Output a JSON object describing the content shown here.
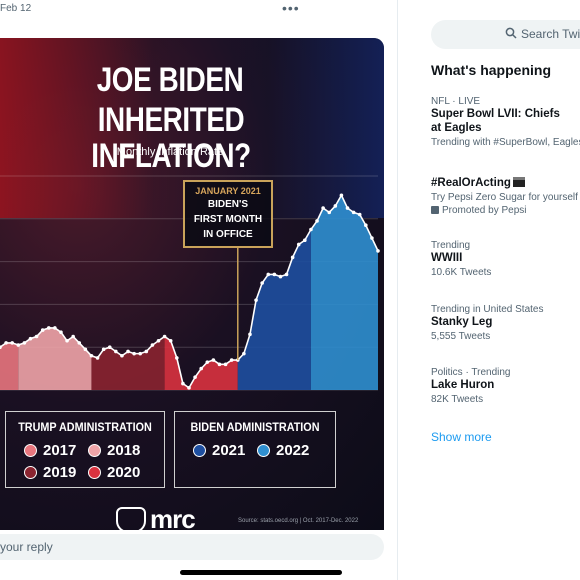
{
  "tweet": {
    "date": "Feb 12",
    "more_icon": "more-horizontal-icon",
    "reply_placeholder": "your reply"
  },
  "graphic": {
    "title_line1": "JOE BIDEN",
    "title_line2": "INHERITED INFLATION?",
    "subtitle": "Monthly Inflation Rate",
    "callout_date": "JANUARY 2021",
    "callout_line1": "BIDEN'S",
    "callout_line2": "FIRST MONTH",
    "callout_line3": "IN OFFICE",
    "trump_title": "TRUMP ADMINISTRATION",
    "biden_title": "BIDEN ADMINISTRATION",
    "years": {
      "y2017": "2017",
      "y2018": "2018",
      "y2019": "2019",
      "y2020": "2020",
      "y2021": "2021",
      "y2022": "2022"
    },
    "colors": {
      "y2017": "#e8767e",
      "y2018": "#f0a4a8",
      "y2019": "#8a2430",
      "y2020": "#d9323f",
      "y2021": "#1e4fa0",
      "y2022": "#2f8fd0"
    },
    "logo": "mrc",
    "source": "Source: stats.oecd.org  |  Oct. 2017-Dec. 2022"
  },
  "chart_data": {
    "type": "area",
    "series": [
      {
        "name": "2017",
        "values": [
          2.0,
          2.2,
          2.2
        ]
      },
      {
        "name": "2018",
        "values": [
          2.1,
          2.2,
          2.4,
          2.5,
          2.8,
          2.9,
          2.9,
          2.7,
          2.3,
          2.5,
          2.2,
          1.9
        ]
      },
      {
        "name": "2019",
        "values": [
          1.6,
          1.5,
          1.9,
          2.0,
          1.8,
          1.6,
          1.8,
          1.7,
          1.7,
          1.8,
          2.1,
          2.3
        ]
      },
      {
        "name": "2020",
        "values": [
          2.5,
          2.3,
          1.5,
          0.3,
          0.1,
          0.6,
          1.0,
          1.3,
          1.4,
          1.2,
          1.2,
          1.4
        ]
      },
      {
        "name": "2021",
        "values": [
          1.4,
          1.7,
          2.6,
          4.2,
          5.0,
          5.4,
          5.4,
          5.3,
          5.4,
          6.2,
          6.8,
          7.0
        ]
      },
      {
        "name": "2022",
        "values": [
          7.5,
          7.9,
          8.5,
          8.3,
          8.6,
          9.1,
          8.5,
          8.3,
          8.2,
          7.7,
          7.1,
          6.5
        ]
      }
    ]
  },
  "sidebar": {
    "search_placeholder": "Search Twitter",
    "heading": "What's happening",
    "trends": [
      {
        "meta": "NFL · LIVE",
        "name_line1": "Super Bowl LVII: Chiefs",
        "name_line2": "at Eagles",
        "sub": "Trending with #SuperBowl, Eagles"
      },
      {
        "meta": "",
        "name_line1": "#RealOrActing",
        "name_line2": "",
        "sub": "Try Pepsi Zero Sugar for yourself",
        "sub2": "Promoted by Pepsi"
      },
      {
        "meta": "Trending",
        "name_line1": "WWIII",
        "name_line2": "",
        "sub": "10.6K Tweets"
      },
      {
        "meta": "Trending in United States",
        "name_line1": "Stanky Leg",
        "name_line2": "",
        "sub": "5,555 Tweets"
      },
      {
        "meta": "Politics · Trending",
        "name_line1": "Lake Huron",
        "name_line2": "",
        "sub": "82K Tweets"
      }
    ],
    "show_more": "Show more"
  }
}
